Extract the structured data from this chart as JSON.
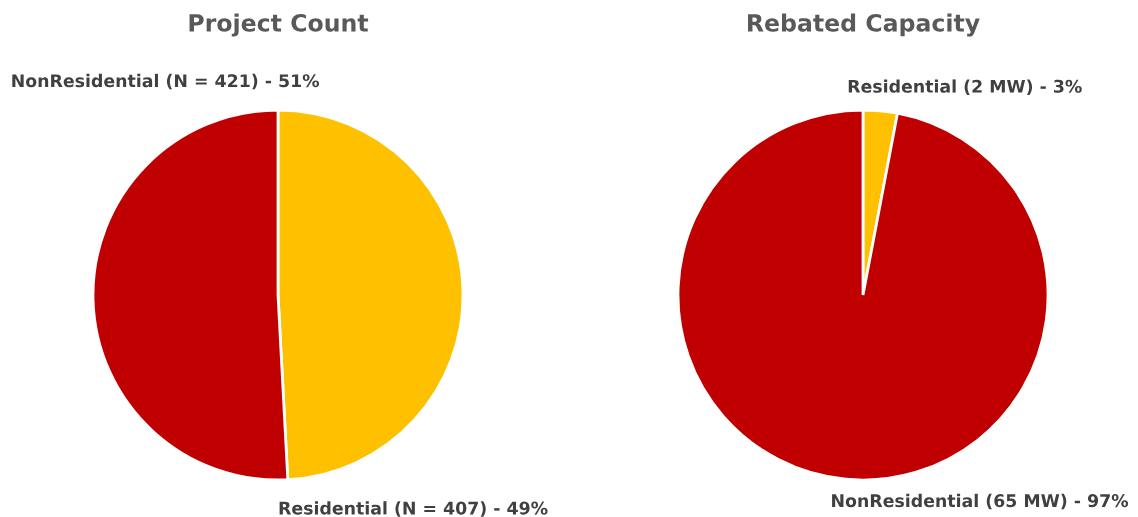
{
  "chart_data": [
    {
      "type": "pie",
      "title": "Project Count",
      "categories": [
        "Residential (N = 407) - 49%",
        "NonResidential (N = 421) - 51%"
      ],
      "values": [
        407,
        421
      ],
      "colors": [
        "#ffc000",
        "#c00000"
      ],
      "legend": false
    },
    {
      "type": "pie",
      "title": "Rebated Capacity",
      "categories": [
        "Residential (2 MW) - 3%",
        "NonResidential (65 MW) - 97%"
      ],
      "values": [
        2,
        65
      ],
      "colors": [
        "#ffc000",
        "#c00000"
      ],
      "legend": false
    }
  ]
}
